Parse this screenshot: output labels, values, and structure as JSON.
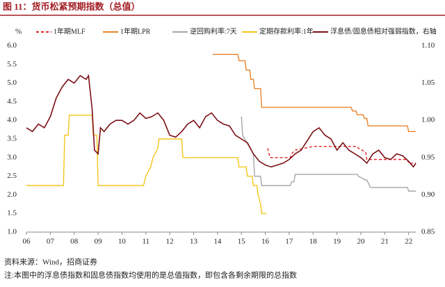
{
  "chart_data": {
    "type": "line",
    "title": "图 11：货币松紧预期指数（总值）",
    "y_unit": "%",
    "source": "资料来源：Wind，招商证券",
    "note": "注:本图中的浮息债指数和固息债指数均使用的是总值指数，即包含各剩余期限的总指数",
    "xlim": [
      2006,
      2022.3
    ],
    "xticks": [
      {
        "value": 2006,
        "label": "06"
      },
      {
        "value": 2007,
        "label": "07"
      },
      {
        "value": 2008,
        "label": "08"
      },
      {
        "value": 2009,
        "label": "09"
      },
      {
        "value": 2010,
        "label": "10"
      },
      {
        "value": 2011,
        "label": "11"
      },
      {
        "value": 2012,
        "label": "12"
      },
      {
        "value": 2013,
        "label": "13"
      },
      {
        "value": 2014,
        "label": "14"
      },
      {
        "value": 2015,
        "label": "15"
      },
      {
        "value": 2016,
        "label": "16"
      },
      {
        "value": 2017,
        "label": "17"
      },
      {
        "value": 2018,
        "label": "18"
      },
      {
        "value": 2019,
        "label": "19"
      },
      {
        "value": 2020,
        "label": "20"
      },
      {
        "value": 2021,
        "label": "21"
      },
      {
        "value": 2022,
        "label": "22"
      }
    ],
    "ylim": [
      1,
      6
    ],
    "yticks": [
      {
        "value": 1,
        "label": "1.0"
      },
      {
        "value": 1.5,
        "label": "1.5"
      },
      {
        "value": 2,
        "label": "2.0"
      },
      {
        "value": 2.5,
        "label": "2.5"
      },
      {
        "value": 3,
        "label": "3.0"
      },
      {
        "value": 3.5,
        "label": "3.5"
      },
      {
        "value": 4,
        "label": "4.0"
      },
      {
        "value": 4.5,
        "label": "4.5"
      },
      {
        "value": 5,
        "label": "5.0"
      },
      {
        "value": 5.5,
        "label": "5.5"
      },
      {
        "value": 6,
        "label": "6.0"
      }
    ],
    "y2lim": [
      0.85,
      1.1
    ],
    "y2ticks": [
      0.85,
      0.9,
      0.95,
      1,
      1.05,
      1.1
    ],
    "y2ticks_labels": [
      "0.85",
      "0.90",
      "0.95",
      "1.00",
      "1.05",
      "1.10"
    ],
    "series": [
      {
        "name": "1年期MLF",
        "color": "#e02020",
        "dashed": true,
        "x": [
          2016.1,
          2016.2,
          2017.05,
          2017.1,
          2017.25,
          2018.0,
          2019.85,
          2019.9,
          2020.2,
          2020.25,
          2021.95,
          2022.0,
          2022.3
        ],
        "values": [
          3.25,
          3.0,
          3.0,
          3.1,
          3.2,
          3.3,
          3.3,
          3.25,
          3.15,
          2.95,
          2.95,
          2.85,
          2.85
        ]
      },
      {
        "name": "1年期LPR",
        "color": "#e8822a",
        "x": [
          2013.8,
          2014.85,
          2014.9,
          2015.15,
          2015.2,
          2015.35,
          2015.4,
          2015.5,
          2015.55,
          2015.8,
          2015.85,
          2019.6,
          2019.65,
          2019.8,
          2019.85,
          2020.1,
          2020.15,
          2020.25,
          2020.3,
          2021.95,
          2022.0,
          2022.3
        ],
        "values": [
          5.77,
          5.77,
          5.6,
          5.6,
          5.35,
          5.35,
          5.1,
          5.1,
          4.85,
          4.85,
          4.35,
          4.35,
          4.25,
          4.25,
          4.15,
          4.15,
          4.05,
          4.05,
          3.85,
          3.85,
          3.7,
          3.7
        ]
      },
      {
        "name": "逆回购利率:7天",
        "color": "#a6a6a6",
        "x": [
          2015.0,
          2015.05,
          2015.5,
          2015.55,
          2015.8,
          2015.85,
          2017.05,
          2017.1,
          2017.2,
          2017.25,
          2019.85,
          2019.9,
          2020.2,
          2020.25,
          2020.4,
          2021.95,
          2022.0,
          2022.3
        ],
        "values": [
          4.1,
          3.6,
          3.1,
          2.5,
          2.5,
          2.25,
          2.25,
          2.35,
          2.35,
          2.55,
          2.55,
          2.5,
          2.4,
          2.4,
          2.2,
          2.2,
          2.1,
          2.1
        ]
      },
      {
        "name": "定期存款利率:1年",
        "color": "#f5c518",
        "x": [
          2006,
          2007.55,
          2007.6,
          2007.75,
          2007.8,
          2008.75,
          2008.8,
          2008.95,
          2009.0,
          2010.9,
          2011.0,
          2011.2,
          2011.3,
          2011.5,
          2011.55,
          2012.5,
          2012.55,
          2014.85,
          2014.9,
          2015.2,
          2015.25,
          2015.45,
          2015.5,
          2015.65,
          2015.7,
          2015.8,
          2015.85,
          2016.05
        ],
        "values": [
          2.25,
          2.25,
          3.6,
          3.6,
          4.14,
          4.14,
          3.6,
          3.6,
          2.25,
          2.25,
          2.5,
          2.75,
          3.0,
          3.25,
          3.5,
          3.5,
          3.0,
          3.0,
          2.75,
          2.75,
          2.5,
          2.5,
          2.25,
          2.25,
          2.0,
          1.75,
          1.5,
          1.5
        ]
      },
      {
        "name": "浮息债/固息债相对强弱指数，右轴",
        "color": "#7b0f16",
        "axis": "y2",
        "x": [
          2006.0,
          2006.25,
          2006.5,
          2006.75,
          2007.0,
          2007.25,
          2007.5,
          2007.75,
          2008.0,
          2008.25,
          2008.5,
          2008.6,
          2008.75,
          2008.85,
          2009.0,
          2009.1,
          2009.25,
          2009.5,
          2009.75,
          2010.0,
          2010.25,
          2010.5,
          2010.75,
          2011.0,
          2011.25,
          2011.5,
          2011.75,
          2012.0,
          2012.25,
          2012.5,
          2012.75,
          2013.0,
          2013.25,
          2013.5,
          2013.75,
          2014.0,
          2014.25,
          2014.5,
          2014.75,
          2015.0,
          2015.25,
          2015.5,
          2015.75,
          2016.0,
          2016.25,
          2016.5,
          2016.75,
          2017.0,
          2017.25,
          2017.5,
          2017.75,
          2018.0,
          2018.25,
          2018.5,
          2018.75,
          2019.0,
          2019.25,
          2019.5,
          2019.75,
          2020.0,
          2020.25,
          2020.5,
          2020.75,
          2021.0,
          2021.25,
          2021.5,
          2021.75,
          2022.0,
          2022.2,
          2022.3
        ],
        "values": [
          0.99,
          0.985,
          0.995,
          0.99,
          1.005,
          1.03,
          1.045,
          1.055,
          1.05,
          1.06,
          1.055,
          1.06,
          1.015,
          0.96,
          0.955,
          0.99,
          0.985,
          0.995,
          1.0,
          1.0,
          0.995,
          1.0,
          1.01,
          1.0025,
          1.005,
          1.01,
          1.0,
          0.98,
          0.9775,
          0.985,
          0.995,
          1.0,
          0.99,
          1.005,
          1.01,
          1.0,
          0.995,
          0.9925,
          0.98,
          0.975,
          0.97,
          0.955,
          0.945,
          0.94,
          0.9375,
          0.94,
          0.9425,
          0.9475,
          0.955,
          0.96,
          0.9725,
          0.985,
          0.99,
          0.98,
          0.975,
          0.96,
          0.97,
          0.96,
          0.955,
          0.95,
          0.9425,
          0.955,
          0.96,
          0.95,
          0.9475,
          0.955,
          0.9525,
          0.945,
          0.9375,
          0.9425
        ]
      }
    ]
  }
}
